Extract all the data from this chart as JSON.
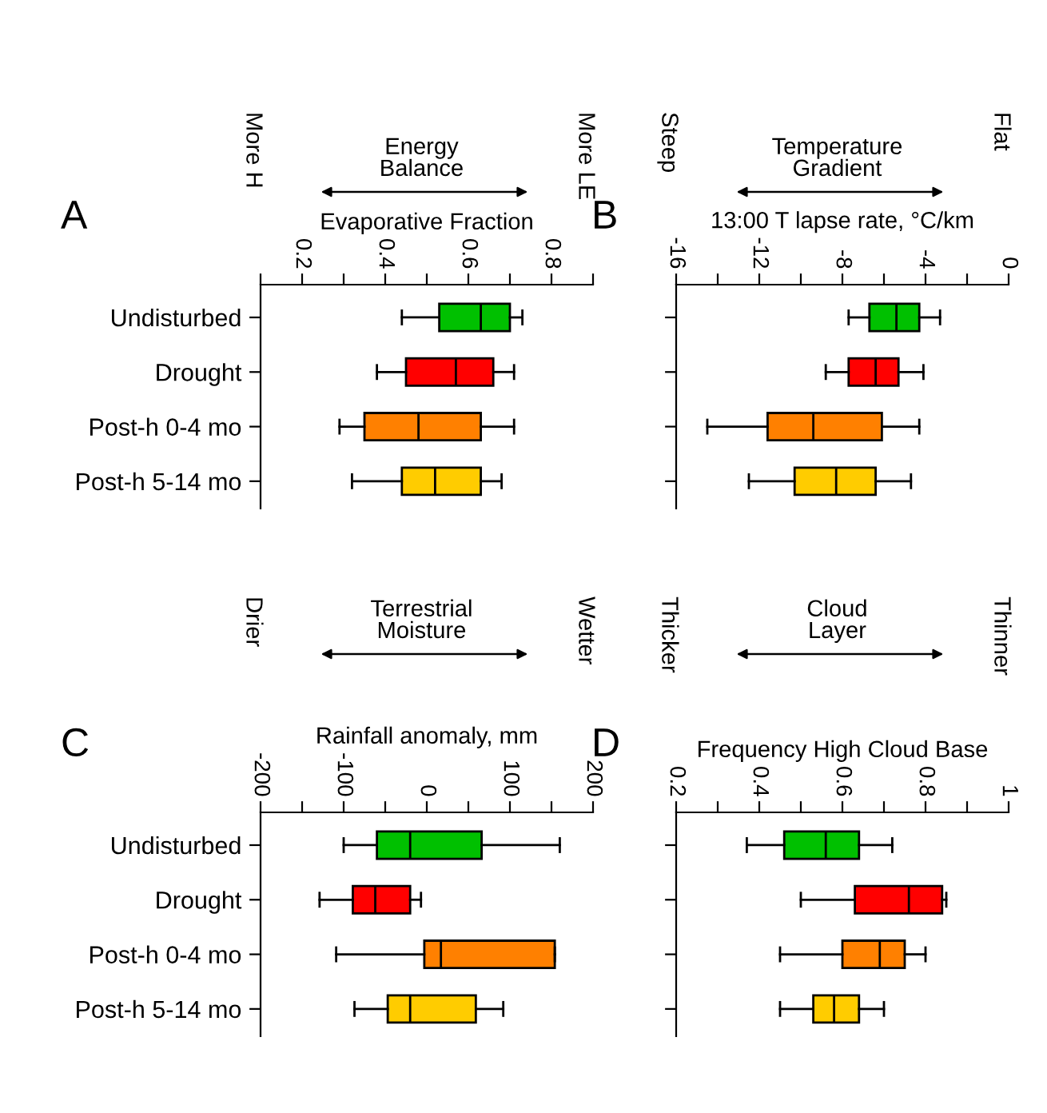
{
  "chart_data": [
    {
      "type": "box",
      "orientation": "horizontal",
      "title": "Energy\nBalance",
      "xlabel": "Evaporative Fraction",
      "annotations": [
        "A",
        "More H",
        "More LE"
      ],
      "categories": [
        "Undisturbed",
        "Drought",
        "Post-h 0-4 mo",
        "Post-h 5-14 mo"
      ],
      "colors": [
        "#00c000",
        "#ff0000",
        "#ff8000",
        "#ffcc00"
      ],
      "boxes": [
        {
          "low": 0.44,
          "q1": 0.53,
          "median": 0.63,
          "q3": 0.7,
          "high": 0.73
        },
        {
          "low": 0.38,
          "q1": 0.45,
          "median": 0.57,
          "q3": 0.66,
          "high": 0.71
        },
        {
          "low": 0.29,
          "q1": 0.35,
          "median": 0.48,
          "q3": 0.63,
          "high": 0.71
        },
        {
          "low": 0.32,
          "q1": 0.44,
          "median": 0.52,
          "q3": 0.63,
          "high": 0.68
        }
      ],
      "xlim": [
        0.1,
        0.9
      ],
      "xticks": [
        {
          "value": 0.1,
          "label": null
        },
        0.2,
        {
          "value": 0.3,
          "label": null
        },
        0.4,
        {
          "value": 0.5,
          "label": null
        },
        0.6,
        {
          "value": 0.7,
          "label": null
        },
        0.8,
        {
          "value": 0.9,
          "label": null
        }
      ],
      "grid": false,
      "legend": false
    },
    {
      "type": "box",
      "orientation": "horizontal",
      "title": "Temperature\nGradient",
      "xlabel": "13:00 T lapse rate, °C/km",
      "annotations": [
        "B",
        "Steep",
        "Flat"
      ],
      "categories": [
        null,
        null,
        null,
        null
      ],
      "tick_labels": "x",
      "colors": [
        "#00c000",
        "#ff0000",
        "#ff8000",
        "#ffcc00"
      ],
      "boxes": [
        {
          "low": -7.7,
          "q1": -6.7,
          "median": -5.4,
          "q3": -4.3,
          "high": -3.3
        },
        {
          "low": -8.8,
          "q1": -7.7,
          "median": -6.4,
          "q3": -5.3,
          "high": -4.1
        },
        {
          "low": -14.5,
          "q1": -11.6,
          "median": -9.4,
          "q3": -6.1,
          "high": -4.3
        },
        {
          "low": -12.5,
          "q1": -10.3,
          "median": -8.3,
          "q3": -6.4,
          "high": -4.7
        }
      ],
      "xlim": [
        -16,
        0
      ],
      "xticks": [
        -16,
        {
          "value": -14,
          "label": null
        },
        -12,
        {
          "value": -10,
          "label": null
        },
        -8,
        {
          "value": -6,
          "label": null
        },
        -4,
        {
          "value": -2,
          "label": null
        },
        0
      ],
      "grid": false,
      "legend": false
    },
    {
      "type": "box",
      "orientation": "horizontal",
      "title": "Terrestrial\nMoisture",
      "xlabel": "Rainfall anomaly, mm",
      "annotations": [
        "C",
        "Drier",
        "Wetter"
      ],
      "categories": [
        "Undisturbed",
        "Drought",
        "Post-h 0-4 mo",
        "Post-h 5-14 mo"
      ],
      "colors": [
        "#00c000",
        "#ff0000",
        "#ff8000",
        "#ffcc00"
      ],
      "boxes": [
        {
          "low": -100,
          "q1": -60,
          "median": -20,
          "q3": 66,
          "high": 160
        },
        {
          "low": -129,
          "q1": -89,
          "median": -62,
          "q3": -20,
          "high": -7
        },
        {
          "low": -109,
          "q1": -3,
          "median": 17,
          "q3": 154,
          "high": 154
        },
        {
          "low": -87,
          "q1": -47,
          "median": -20,
          "q3": 59,
          "high": 92
        }
      ],
      "xlim": [
        -200,
        200
      ],
      "xticks": [
        -200,
        {
          "value": -150,
          "label": null
        },
        -100,
        {
          "value": -50,
          "label": null
        },
        0,
        {
          "value": 50,
          "label": null
        },
        100,
        {
          "value": 150,
          "label": null
        },
        200
      ],
      "grid": false,
      "legend": false
    },
    {
      "type": "box",
      "orientation": "horizontal",
      "title": "Cloud\nLayer",
      "xlabel": "Frequency High Cloud Base",
      "annotations": [
        "D",
        "Thicker",
        "Thinner"
      ],
      "categories": [
        null,
        null,
        null,
        null
      ],
      "tick_labels": "x",
      "colors": [
        "#00c000",
        "#ff0000",
        "#ff8000",
        "#ffcc00"
      ],
      "boxes": [
        {
          "low": 0.37,
          "q1": 0.46,
          "median": 0.56,
          "q3": 0.64,
          "high": 0.72
        },
        {
          "low": 0.5,
          "q1": 0.63,
          "median": 0.76,
          "q3": 0.84,
          "high": 0.85
        },
        {
          "low": 0.45,
          "q1": 0.6,
          "median": 0.69,
          "q3": 0.75,
          "high": 0.8
        },
        {
          "low": 0.45,
          "q1": 0.53,
          "median": 0.58,
          "q3": 0.64,
          "high": 0.7
        }
      ],
      "xlim": [
        0.2,
        1
      ],
      "xticks": [
        0.2,
        {
          "value": 0.3,
          "label": null
        },
        0.4,
        {
          "value": 0.5,
          "label": null
        },
        0.6,
        {
          "value": 0.7,
          "label": null
        },
        0.8,
        {
          "value": 0.9,
          "label": null
        },
        1
      ],
      "grid": false,
      "legend": false
    }
  ]
}
